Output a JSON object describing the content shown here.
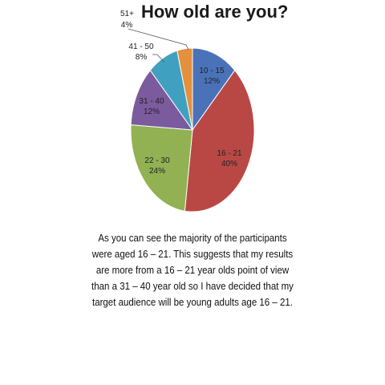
{
  "chart_data": {
    "type": "pie",
    "title": "How old are you?",
    "title_prefix": "51+",
    "slices": [
      {
        "label": "10 - 15",
        "value": 12,
        "display": "12%",
        "color": "#4a72b8"
      },
      {
        "label": "16 - 21",
        "value": 40,
        "display": "40%",
        "color": "#b94845"
      },
      {
        "label": "22 - 30",
        "value": 24,
        "display": "24%",
        "color": "#91b153"
      },
      {
        "label": "31 - 40",
        "value": 12,
        "display": "12%",
        "color": "#7b5b9e"
      },
      {
        "label": "41 - 50",
        "value": 8,
        "display": "8%",
        "color": "#3fa1bf"
      },
      {
        "label": "51+",
        "value": 4,
        "display": "4%",
        "color": "#e5903d"
      }
    ]
  },
  "caption": "As you can see the majority of the participants were aged 16 – 21. This suggests that my results are more from a 16 – 21 year olds point of view than a 31 – 40 year old so I have decided that my target audience will be young adults age 16 – 21."
}
